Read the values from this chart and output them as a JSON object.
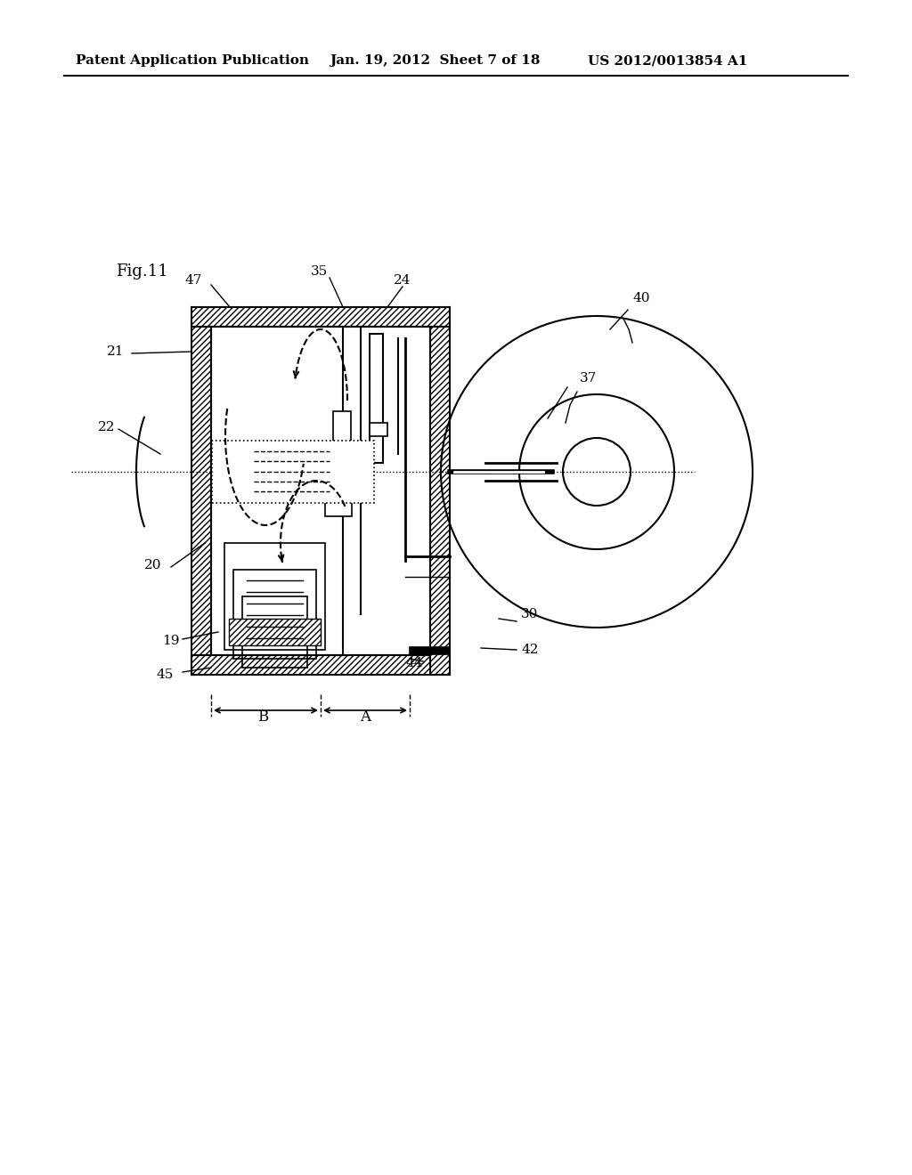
{
  "title": "Fig.11",
  "header_left": "Patent Application Publication",
  "header_center": "Jan. 19, 2012  Sheet 7 of 18",
  "header_right": "US 2012/0013854 A1",
  "bg_color": "#ffffff",
  "hatch_color": "#333333",
  "line_color": "#000000"
}
